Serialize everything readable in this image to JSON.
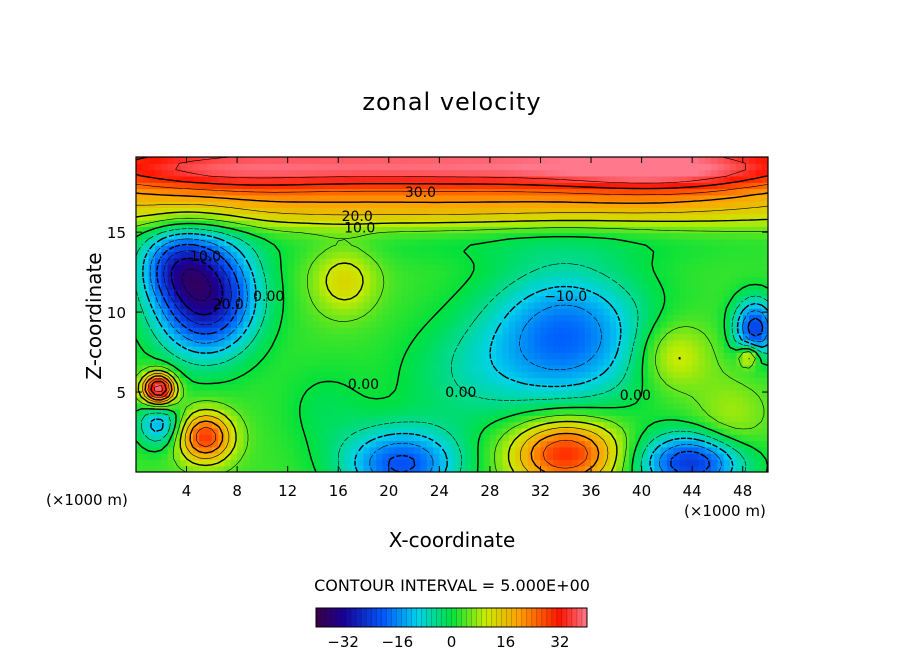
{
  "chart_data": {
    "type": "heatmap",
    "title": "zonal velocity",
    "xlabel": "X-coordinate",
    "ylabel": "Z-coordinate",
    "x_unit_note": "(×1000 m)",
    "x_ticks": [
      4,
      8,
      12,
      16,
      20,
      24,
      28,
      32,
      36,
      40,
      44,
      48
    ],
    "y_ticks": [
      5,
      10,
      15
    ],
    "xlim": [
      0,
      50
    ],
    "ylim": [
      0,
      19.7
    ],
    "contour_labels": [
      {
        "text": "30.0",
        "x": 22.5,
        "z": 17.5
      },
      {
        "text": "20.0",
        "x": 17.5,
        "z": 16.0
      },
      {
        "text": "10.0",
        "x": 17.7,
        "z": 15.3
      },
      {
        "text": "10.0",
        "x": 5.5,
        "z": 13.5
      },
      {
        "text": "20.0",
        "x": 7.3,
        "z": 10.5
      },
      {
        "text": "0.00",
        "x": 10.5,
        "z": 11.0
      },
      {
        "text": "−10.0",
        "x": 34.0,
        "z": 11.0
      },
      {
        "text": "0.00",
        "x": 18.0,
        "z": 5.5
      },
      {
        "text": "0.00",
        "x": 25.7,
        "z": 5.0
      },
      {
        "text": "0.00",
        "x": 39.5,
        "z": 4.8
      }
    ],
    "contour_interval": "CONTOUR INTERVAL = 5.000E+00",
    "colorbar": {
      "range": [
        -40,
        40
      ],
      "ticks": [
        "−32",
        "−16",
        "0",
        "16",
        "32"
      ],
      "tick_values": [
        -32,
        -16,
        0,
        16,
        32
      ]
    },
    "field": {
      "background": 3,
      "features": [
        {
          "x": 25,
          "z": 19.2,
          "sx": 30,
          "sz": 1.4,
          "a": 36
        },
        {
          "x": 42,
          "z": 18.8,
          "sx": 6,
          "sz": 1.2,
          "a": 10
        },
        {
          "x": 6,
          "z": 18.5,
          "sx": 6,
          "sz": 1.2,
          "a": 6
        },
        {
          "x": 25,
          "z": 16.3,
          "sx": 30,
          "sz": 0.9,
          "a": 10
        },
        {
          "x": 5.5,
          "z": 11,
          "sx": 2.8,
          "sz": 2.5,
          "a": -36
        },
        {
          "x": 3,
          "z": 13,
          "sx": 2,
          "sz": 1.5,
          "a": -15
        },
        {
          "x": 34,
          "z": 8.5,
          "sx": 4.5,
          "sz": 3.0,
          "a": -22
        },
        {
          "x": 21,
          "z": 0.5,
          "sx": 3.2,
          "sz": 1.6,
          "a": -24
        },
        {
          "x": 44,
          "z": 0.6,
          "sx": 3.0,
          "sz": 1.3,
          "a": -28
        },
        {
          "x": 34,
          "z": 1.2,
          "sx": 3.0,
          "sz": 1.5,
          "a": 28
        },
        {
          "x": 1.8,
          "z": 5.2,
          "sx": 0.9,
          "sz": 0.7,
          "a": 38
        },
        {
          "x": 1.8,
          "z": 3,
          "sx": 1.2,
          "sz": 1.0,
          "a": -16
        },
        {
          "x": 5.5,
          "z": 2.2,
          "sx": 1.5,
          "sz": 1.1,
          "a": 26
        },
        {
          "x": 49,
          "z": 9,
          "sx": 1.2,
          "sz": 1.3,
          "a": -26
        },
        {
          "x": 48.5,
          "z": 7.3,
          "sx": 0.6,
          "sz": 0.5,
          "a": 16
        },
        {
          "x": 16.5,
          "z": 12,
          "sx": 1.8,
          "sz": 1.5,
          "a": 10
        },
        {
          "x": 42.5,
          "z": 7.3,
          "sx": 2.0,
          "sz": 1.5,
          "a": 10
        },
        {
          "x": 26,
          "z": 6,
          "sx": 4,
          "sz": 2.5,
          "a": -6
        },
        {
          "x": 15,
          "z": 4,
          "sx": 2.5,
          "sz": 2,
          "a": -4
        },
        {
          "x": 47,
          "z": 3,
          "sx": 2,
          "sz": 2,
          "a": 6
        },
        {
          "x": 30,
          "z": 14.5,
          "sx": 15,
          "sz": 1,
          "a": -3
        }
      ]
    }
  }
}
